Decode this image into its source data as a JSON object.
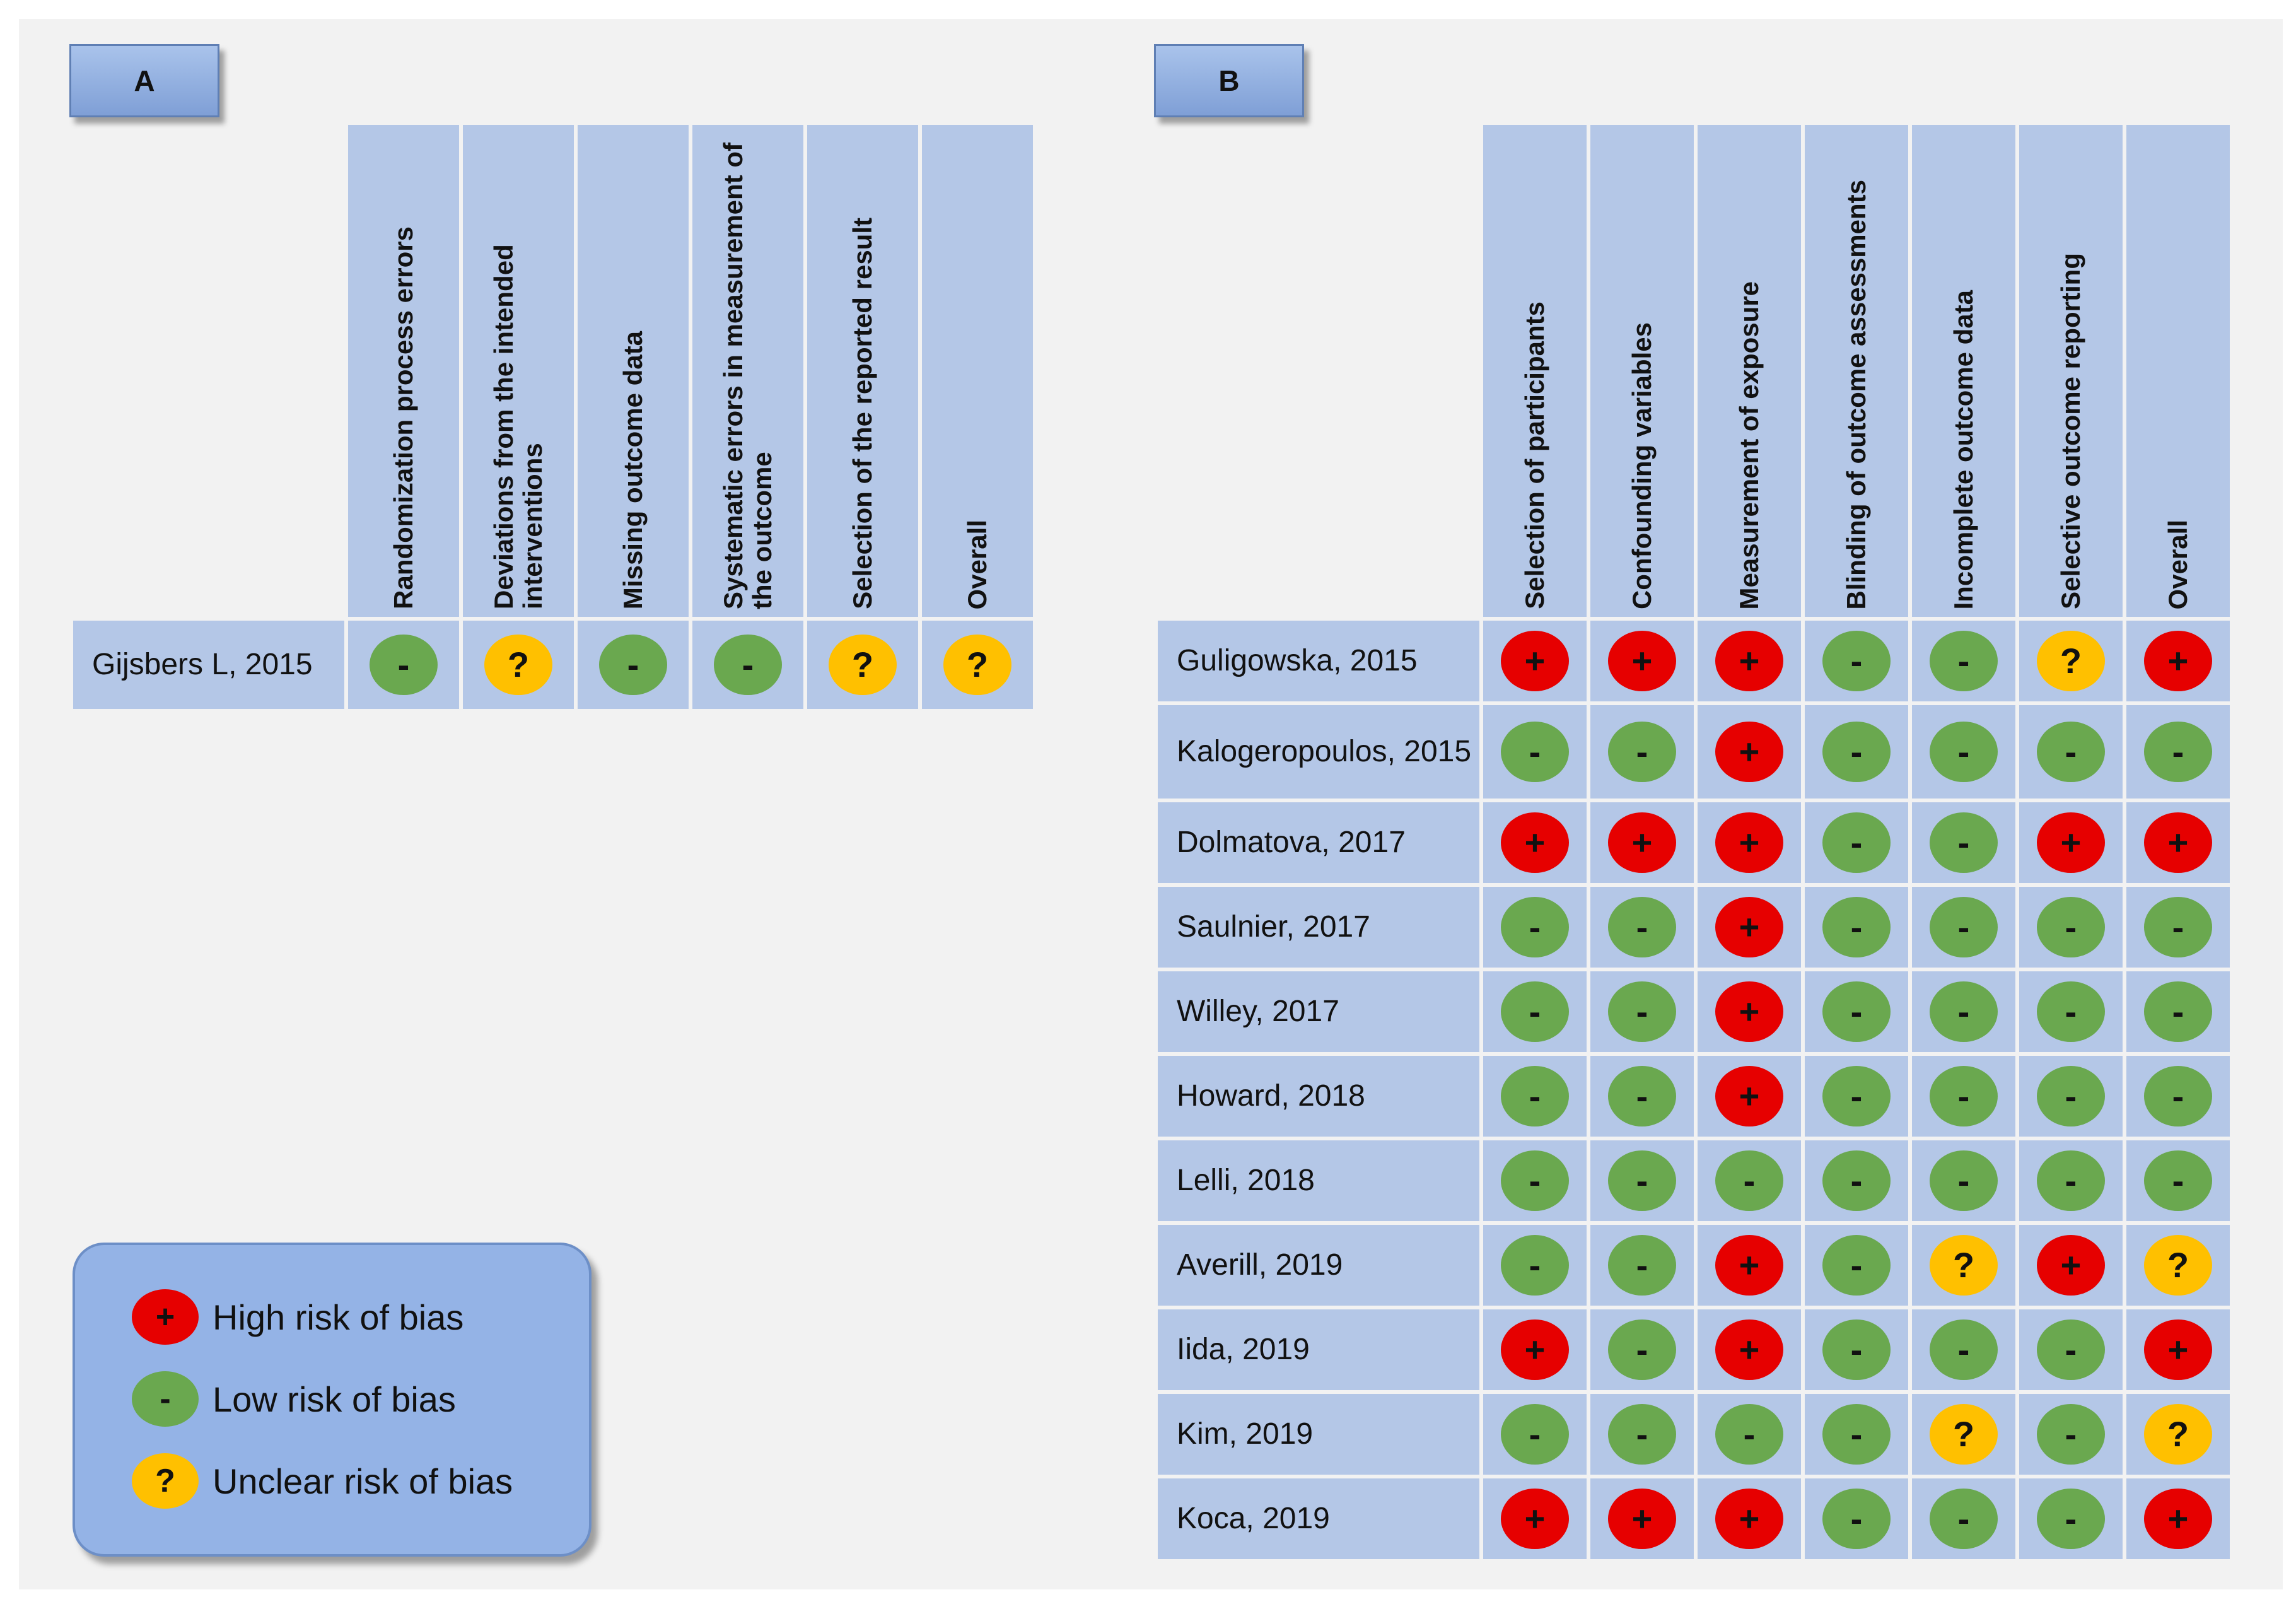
{
  "panel_a": {
    "tag": "A",
    "columns": [
      "Randomization process errors",
      "Deviations from the intended interventions",
      "Missing outcome data",
      "Systematic errors in measurement of the outcome",
      "Selection of the reported result",
      "Overall"
    ],
    "rows": [
      {
        "study": "Gijsbers L, 2015",
        "ratings": [
          "low",
          "unclear",
          "low",
          "low",
          "unclear",
          "unclear"
        ]
      }
    ]
  },
  "panel_b": {
    "tag": "B",
    "columns": [
      "Selection of participants",
      "Confounding variables",
      "Measurement of exposure",
      "Blinding of outcome assessments",
      "Incomplete outcome data",
      "Selective outcome reporting",
      "Overall"
    ],
    "rows": [
      {
        "study": "Guligowska, 2015",
        "ratings": [
          "high",
          "high",
          "high",
          "low",
          "low",
          "unclear",
          "high"
        ]
      },
      {
        "study": "Kalogeropoulos, 2015",
        "ratings": [
          "low",
          "low",
          "high",
          "low",
          "low",
          "low",
          "low"
        ]
      },
      {
        "study": "Dolmatova, 2017",
        "ratings": [
          "high",
          "high",
          "high",
          "low",
          "low",
          "high",
          "high"
        ]
      },
      {
        "study": "Saulnier, 2017",
        "ratings": [
          "low",
          "low",
          "high",
          "low",
          "low",
          "low",
          "low"
        ]
      },
      {
        "study": "Willey, 2017",
        "ratings": [
          "low",
          "low",
          "high",
          "low",
          "low",
          "low",
          "low"
        ]
      },
      {
        "study": "Howard, 2018",
        "ratings": [
          "low",
          "low",
          "high",
          "low",
          "low",
          "low",
          "low"
        ]
      },
      {
        "study": "Lelli, 2018",
        "ratings": [
          "low",
          "low",
          "low",
          "low",
          "low",
          "low",
          "low"
        ]
      },
      {
        "study": "Averill, 2019",
        "ratings": [
          "low",
          "low",
          "high",
          "low",
          "unclear",
          "high",
          "unclear"
        ]
      },
      {
        "study": "Iida, 2019",
        "ratings": [
          "high",
          "low",
          "high",
          "low",
          "low",
          "low",
          "high"
        ]
      },
      {
        "study": "Kim, 2019",
        "ratings": [
          "low",
          "low",
          "low",
          "low",
          "unclear",
          "low",
          "unclear"
        ]
      },
      {
        "study": "Koca, 2019",
        "ratings": [
          "high",
          "high",
          "high",
          "low",
          "low",
          "low",
          "high"
        ]
      }
    ]
  },
  "legend": {
    "high": {
      "symbol": "+",
      "label": "High risk of bias",
      "color": "#e60000"
    },
    "low": {
      "symbol": "-",
      "label": "Low risk of bias",
      "color": "#6aa84f"
    },
    "unclear": {
      "symbol": "?",
      "label": "Unclear risk of bias",
      "color": "#ffc000"
    }
  }
}
